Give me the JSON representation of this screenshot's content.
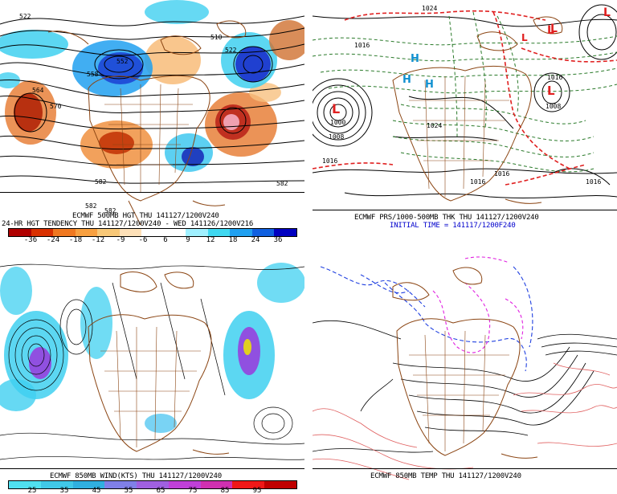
{
  "panels": {
    "top_left": {
      "caption1": "ECMWF 500MB HGT THU 141127/1200V240",
      "caption2": "24-HR HGT TENDENCY THU 141127/1200V240 - WED 141126/1200V216",
      "colorbar": {
        "ticks": [
          "-36",
          "-24",
          "-18",
          "-12",
          "-9",
          "-6",
          "6",
          "9",
          "12",
          "18",
          "24",
          "36"
        ],
        "colors": [
          "#b00000",
          "#d83000",
          "#f07820",
          "#f8a040",
          "#f8c878",
          "#fde0b8",
          "#ffffff",
          "#ffffff",
          "#a0f0ff",
          "#40d8f0",
          "#20a0f0",
          "#1060e0",
          "#0000c0"
        ]
      },
      "contour_labels": [
        "522",
        "510",
        "522",
        "552",
        "558",
        "564",
        "570",
        "582",
        "582",
        "582",
        "582"
      ]
    },
    "top_right": {
      "caption1": "ECMWF PRS/1000-500MB THK THU 141127/1200V240",
      "caption2": "INITIAL TIME = 141117/1200F240",
      "contour_labels": [
        "1024",
        "1016",
        "1000",
        "1008",
        "1016",
        "1016",
        "1024",
        "1016",
        "1016",
        "1016",
        "1008"
      ],
      "high_low_letters": [
        "L",
        "L",
        "L",
        "H",
        "H",
        "H",
        "L",
        "L",
        "L"
      ]
    },
    "bottom_left": {
      "caption1": "ECMWF 850MB WIND(KTS) THU 141127/1200V240",
      "colorbar": {
        "ticks": [
          "25",
          "35",
          "45",
          "55",
          "65",
          "75",
          "85",
          "95"
        ],
        "colors": [
          "#50e0f0",
          "#40c8e8",
          "#30b0e0",
          "#8080e8",
          "#a060e0",
          "#c040d8",
          "#d030b0",
          "#f01818",
          "#c00000"
        ]
      }
    },
    "bottom_right": {
      "caption1": "ECMWF 850MB TEMP THU 141127/1200V240"
    }
  },
  "colors": {
    "coast": "#8b4513",
    "contour": "#000000",
    "thickness_dashed": "#2a7a2a",
    "thickness_warm": "#e02020",
    "cold_dashed": "#2040e0",
    "magenta": "#e020e0",
    "warm_temp": "#e06060"
  }
}
